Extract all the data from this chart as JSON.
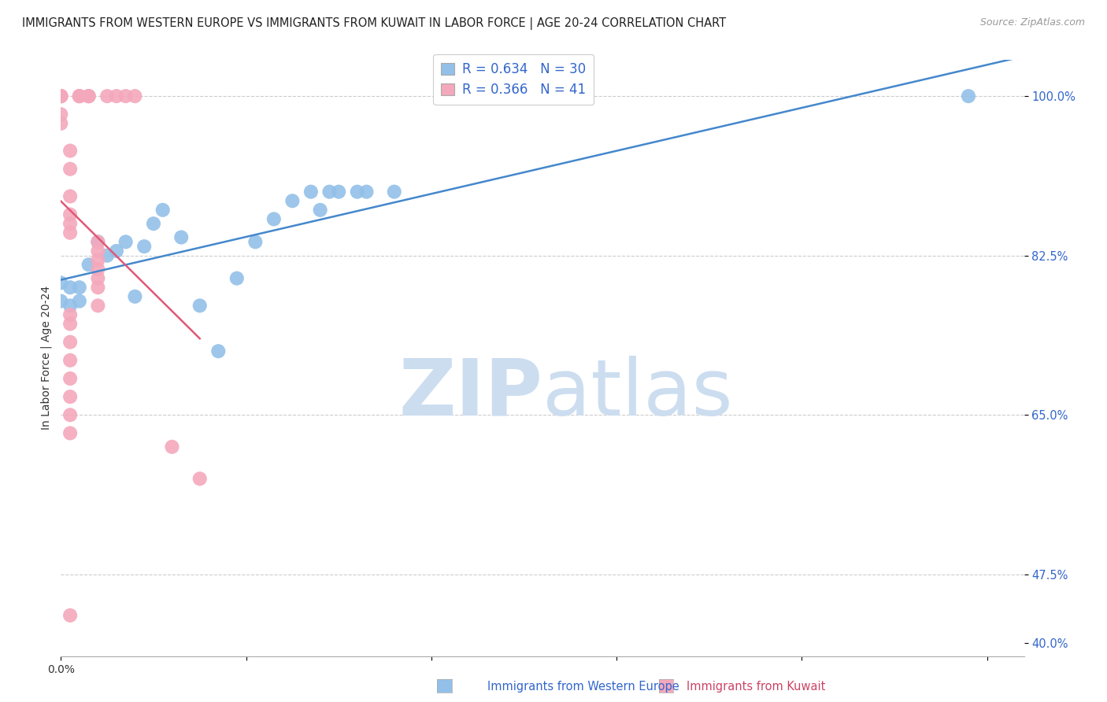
{
  "title": "IMMIGRANTS FROM WESTERN EUROPE VS IMMIGRANTS FROM KUWAIT IN LABOR FORCE | AGE 20-24 CORRELATION CHART",
  "source": "Source: ZipAtlas.com",
  "ylabel": "In Labor Force | Age 20-24",
  "xlim": [
    0.0,
    0.104
  ],
  "ylim": [
    0.385,
    1.04
  ],
  "ytick_vals": [
    0.4,
    0.475,
    0.65,
    0.825,
    1.0
  ],
  "ytick_labels": [
    "40.0%",
    "47.5%",
    "65.0%",
    "82.5%",
    "100.0%"
  ],
  "xtick_vals": [
    0.0,
    0.02,
    0.04,
    0.06,
    0.08,
    0.1
  ],
  "xtick_labels": [
    "0.0%",
    "",
    "",
    "",
    "",
    ""
  ],
  "grid_yticks": [
    0.475,
    0.65,
    0.825,
    1.0
  ],
  "blue_color": "#92c0e8",
  "pink_color": "#f4a8bc",
  "blue_line_color": "#4488cc",
  "pink_line_color": "#e05878",
  "R_blue": 0.634,
  "N_blue": 30,
  "R_pink": 0.366,
  "N_pink": 41,
  "blue_x": [
    0.0,
    0.0,
    0.001,
    0.001,
    0.002,
    0.002,
    0.003,
    0.004,
    0.005,
    0.006,
    0.007,
    0.008,
    0.009,
    0.01,
    0.011,
    0.013,
    0.015,
    0.017,
    0.019,
    0.021,
    0.023,
    0.025,
    0.027,
    0.029,
    0.032,
    0.028,
    0.03,
    0.033,
    0.036,
    0.098
  ],
  "blue_y": [
    0.795,
    0.775,
    0.79,
    0.77,
    0.79,
    0.775,
    0.815,
    0.84,
    0.825,
    0.83,
    0.84,
    0.78,
    0.835,
    0.86,
    0.875,
    0.845,
    0.77,
    0.72,
    0.8,
    0.84,
    0.865,
    0.885,
    0.895,
    0.895,
    0.895,
    0.875,
    0.895,
    0.895,
    0.895,
    1.0
  ],
  "pink_x": [
    0.0,
    0.0,
    0.0,
    0.0,
    0.0,
    0.0,
    0.0,
    0.001,
    0.001,
    0.001,
    0.001,
    0.001,
    0.001,
    0.002,
    0.002,
    0.002,
    0.003,
    0.003,
    0.003,
    0.004,
    0.004,
    0.004,
    0.004,
    0.004,
    0.004,
    0.004,
    0.005,
    0.006,
    0.007,
    0.008,
    0.001,
    0.001,
    0.001,
    0.001,
    0.001,
    0.001,
    0.001,
    0.001,
    0.012,
    0.015,
    0.001
  ],
  "pink_y": [
    1.0,
    1.0,
    1.0,
    1.0,
    1.0,
    0.98,
    0.97,
    0.94,
    0.92,
    0.89,
    0.87,
    0.86,
    0.85,
    1.0,
    1.0,
    1.0,
    1.0,
    1.0,
    1.0,
    0.84,
    0.83,
    0.82,
    0.81,
    0.8,
    0.79,
    0.77,
    1.0,
    1.0,
    1.0,
    1.0,
    0.76,
    0.75,
    0.73,
    0.71,
    0.69,
    0.67,
    0.65,
    0.63,
    0.615,
    0.58,
    0.43
  ],
  "watermark_zip": "ZIP",
  "watermark_atlas": "atlas",
  "watermark_color": "#ccddf0",
  "background_color": "#ffffff"
}
